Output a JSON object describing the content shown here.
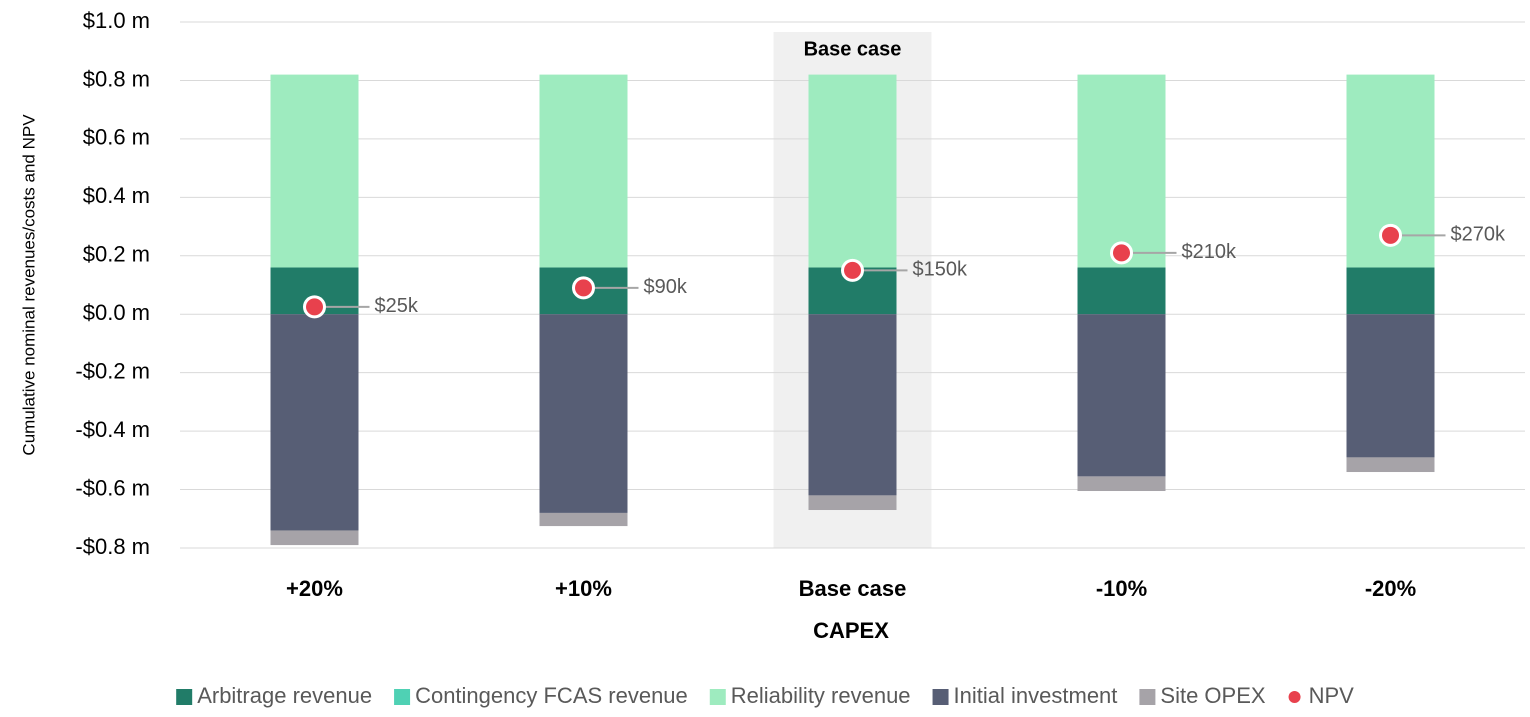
{
  "chart_data": {
    "type": "stacked_bar",
    "x_label": "CAPEX",
    "y_label": "Cumulative nominal revenues/costs and NPV",
    "categories": [
      "+20%",
      "+10%",
      "Base case",
      "-10%",
      "-20%"
    ],
    "highlight": "Base case",
    "series": [
      {
        "name": "Arbitrage revenue",
        "color": "#217c68",
        "values": [
          0.16,
          0.16,
          0.16,
          0.16,
          0.16
        ]
      },
      {
        "name": "Contingency FCAS revenue",
        "color": "#4fd1b4",
        "values": [
          0,
          0,
          0,
          0,
          0
        ]
      },
      {
        "name": "Reliability revenue",
        "color": "#9eebbf",
        "values": [
          0.66,
          0.66,
          0.66,
          0.66,
          0.66
        ]
      },
      {
        "name": "Initial investment",
        "color": "#575e75",
        "values": [
          -0.74,
          -0.68,
          -0.62,
          -0.555,
          -0.49
        ]
      },
      {
        "name": "Site OPEX",
        "color": "#a6a3a8",
        "values": [
          -0.05,
          -0.045,
          -0.05,
          -0.05,
          -0.05
        ]
      },
      {
        "name": "NPV",
        "type": "scatter",
        "color": "#e8414d",
        "values": [
          0.025,
          0.09,
          0.15,
          0.21,
          0.27
        ],
        "value_labels": [
          "$25k",
          "$90k",
          "$150k",
          "$210k",
          "$270k"
        ]
      }
    ],
    "ylim": [
      -0.8,
      1.0
    ],
    "yticks": [
      {
        "value": -0.8,
        "label": "-$0.8 m"
      },
      {
        "value": -0.6,
        "label": "-$0.6 m"
      },
      {
        "value": -0.4,
        "label": "-$0.4 m"
      },
      {
        "value": -0.2,
        "label": "-$0.2 m"
      },
      {
        "value": 0,
        "label": "$0.0 m"
      },
      {
        "value": 0.2,
        "label": "$0.2 m"
      },
      {
        "value": 0.4,
        "label": "$0.4 m"
      },
      {
        "value": 0.6,
        "label": "$0.6 m"
      },
      {
        "value": 0.8,
        "label": "$0.8 m"
      },
      {
        "value": 1.0,
        "label": "$1.0 m"
      }
    ],
    "grid": true
  }
}
